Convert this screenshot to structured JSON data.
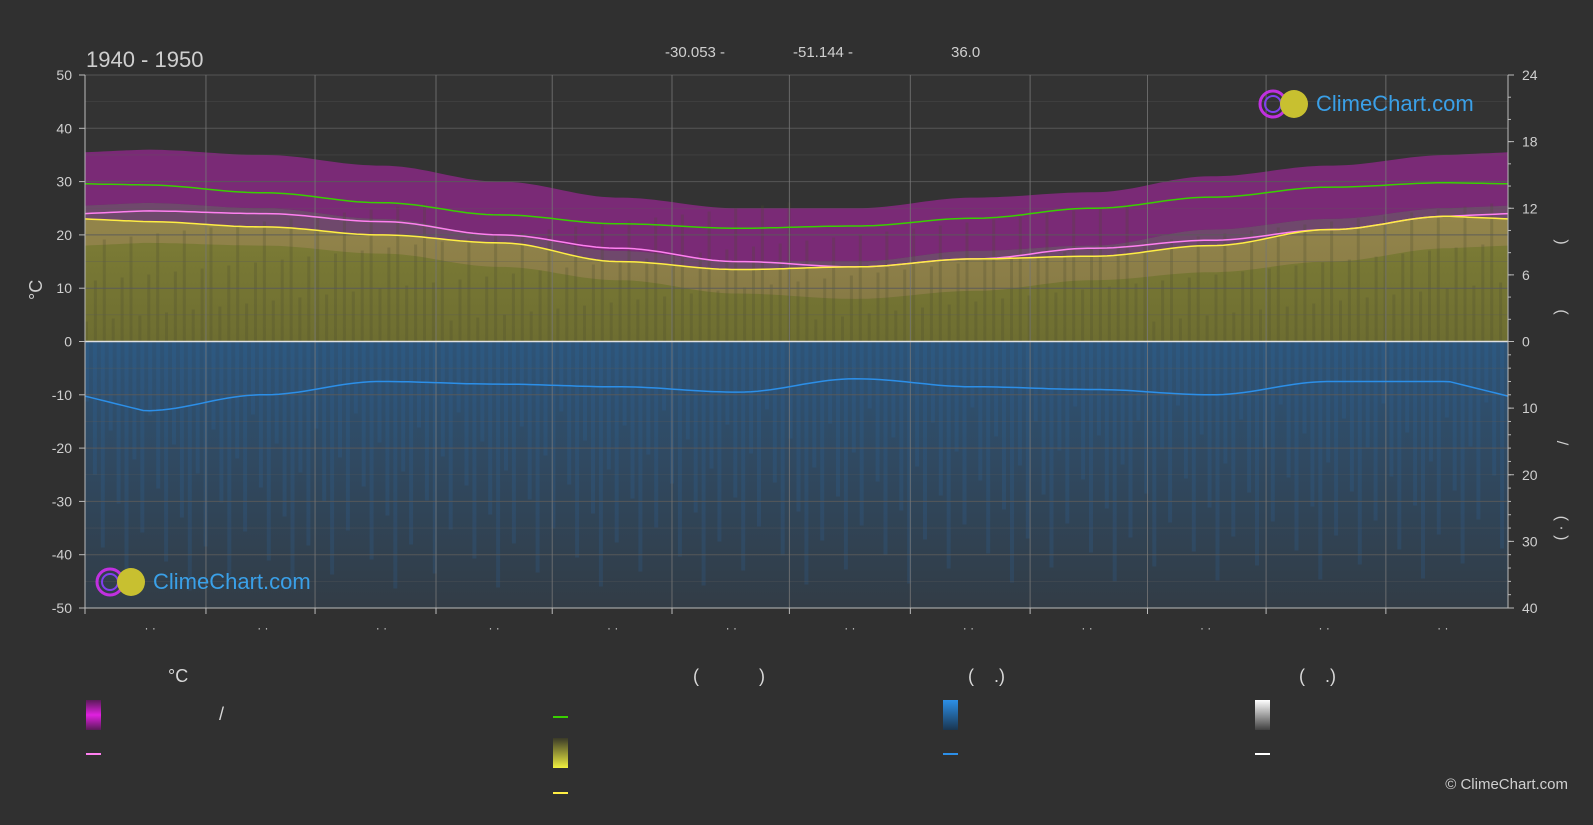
{
  "header": {
    "period": "1940 - 1950",
    "lat": "-30.053 -",
    "lon": "-51.144 -",
    "elev": "36.0"
  },
  "axes": {
    "left_unit": "°C",
    "left_ticks": [
      "50",
      "40",
      "30",
      "20",
      "10",
      "0",
      "-10",
      "-20",
      "-30",
      "-40",
      "-50"
    ],
    "right_ticks_top": [
      "24",
      "18",
      "12",
      "6",
      "0"
    ],
    "right_ticks_bottom": [
      "10",
      "20",
      "30",
      "40"
    ],
    "right_label_fragments": [
      ")",
      "(",
      "/",
      "(  ·  )"
    ],
    "month_ticks": [
      "· ·",
      "· ·",
      "· ·",
      "· ·",
      "· ·",
      "· ·",
      "· ·",
      "· ·",
      "· ·",
      "· ·",
      "· ·",
      "· ·"
    ]
  },
  "legend": {
    "col1_header": "°C",
    "col2_header": "(            )",
    "col3_header": "(    .)",
    "col4_header": "(    .)",
    "slash": "/"
  },
  "logo_text": "ClimeChart.com",
  "copyright": "© ClimeChart.com",
  "colors": {
    "background": "#303030",
    "grid": "#5a5a5a",
    "max_temp_band": "#d020c8",
    "mean_temp_band": "#e070d8",
    "sunshine": "#c8c830",
    "daylight": "#39d000",
    "mean_line": "#ff80f0",
    "sunshine_line": "#ffee44",
    "rain": "#2a6fb0",
    "rain_line": "#2c8fe8",
    "accent_text": "#3aa0e8"
  },
  "chart_data": {
    "type": "area",
    "x": [
      0.5,
      1.5,
      2.5,
      3.5,
      4.5,
      5.5,
      6.5,
      7.5,
      8.5,
      9.5,
      10.5,
      11.5
    ],
    "xlim": [
      0,
      12
    ],
    "ylim": [
      -50,
      50
    ],
    "y2lim_top": [
      0,
      24
    ],
    "y2lim_bottom": [
      0,
      40
    ],
    "series": [
      {
        "id": "daylight",
        "axis": "hours",
        "values": [
          14.1,
          13.4,
          12.5,
          11.4,
          10.6,
          10.2,
          10.4,
          11.1,
          12.0,
          13.0,
          13.9,
          14.3
        ]
      },
      {
        "id": "max_temp",
        "axis": "temp",
        "values": [
          30,
          29,
          27,
          24,
          21,
          19,
          19,
          21,
          22,
          25,
          27,
          29
        ]
      },
      {
        "id": "mean_temp",
        "axis": "temp",
        "values": [
          24.5,
          24,
          22.5,
          20,
          17.5,
          15,
          14,
          15.5,
          17.5,
          19,
          21,
          23.5
        ]
      },
      {
        "id": "sunshine",
        "axis": "temp",
        "values": [
          22.5,
          21.5,
          20,
          18.5,
          15,
          13.5,
          14,
          15.5,
          16,
          18,
          21,
          23.5
        ]
      },
      {
        "id": "precip",
        "axis": "temp",
        "values": [
          -13,
          -10,
          -7.5,
          -8,
          -8.5,
          -9.5,
          -7,
          -8.5,
          -9,
          -10,
          -7.5,
          -7.5
        ]
      }
    ]
  }
}
